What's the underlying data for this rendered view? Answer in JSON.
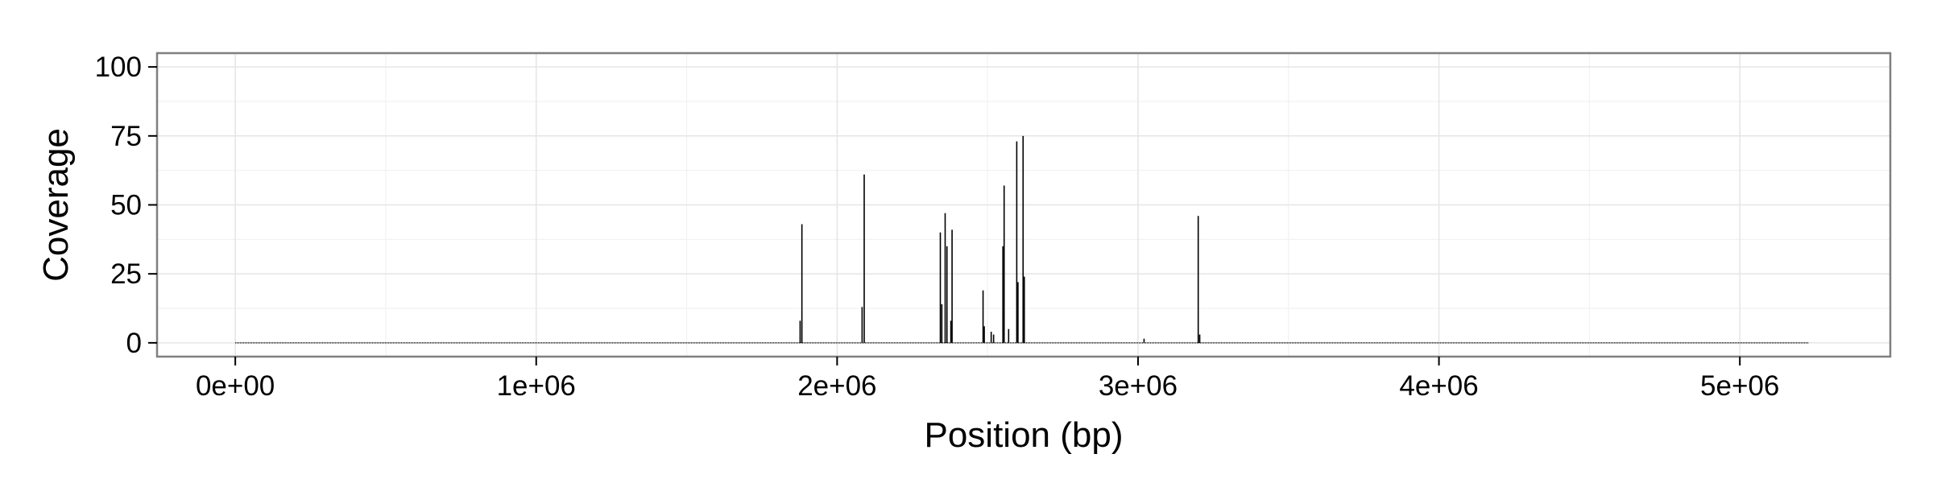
{
  "chart_data": {
    "type": "bar",
    "title": "",
    "xlabel": "Position (bp)",
    "ylabel": "Coverage",
    "xlim": [
      -260000,
      5500000
    ],
    "ylim": [
      -5,
      105
    ],
    "x_ticks": [
      0,
      1000000,
      2000000,
      3000000,
      4000000,
      5000000
    ],
    "x_tick_labels": [
      "0e+00",
      "1e+06",
      "2e+06",
      "3e+06",
      "4e+06",
      "5e+06"
    ],
    "y_ticks": [
      0,
      25,
      50,
      75,
      100
    ],
    "y_tick_labels": [
      "0",
      "25",
      "50",
      "75",
      "100"
    ],
    "grid": true,
    "legend": "none",
    "colors": {
      "bar": "#000000",
      "panel_background": "#ffffff",
      "grid_major": "#e6e6e6",
      "grid_minor": "#f2f2f2",
      "panel_border": "#7f7f7f",
      "axis_tick": "#000000"
    },
    "genome_extent": [
      0,
      5230000
    ],
    "baseline_coverage": 0.3,
    "peaks": [
      {
        "x": 1877000,
        "y": 8
      },
      {
        "x": 1883000,
        "y": 43
      },
      {
        "x": 2083000,
        "y": 13
      },
      {
        "x": 2090000,
        "y": 61
      },
      {
        "x": 2343000,
        "y": 40
      },
      {
        "x": 2348000,
        "y": 14
      },
      {
        "x": 2359000,
        "y": 47
      },
      {
        "x": 2365000,
        "y": 35
      },
      {
        "x": 2382000,
        "y": 41
      },
      {
        "x": 2378000,
        "y": 8
      },
      {
        "x": 2485000,
        "y": 19
      },
      {
        "x": 2489000,
        "y": 6
      },
      {
        "x": 2512000,
        "y": 4
      },
      {
        "x": 2520000,
        "y": 3
      },
      {
        "x": 2555000,
        "y": 57
      },
      {
        "x": 2551000,
        "y": 35
      },
      {
        "x": 2570000,
        "y": 5
      },
      {
        "x": 2597000,
        "y": 73
      },
      {
        "x": 2601000,
        "y": 22
      },
      {
        "x": 2618000,
        "y": 75
      },
      {
        "x": 2622000,
        "y": 24
      },
      {
        "x": 3020000,
        "y": 1.5
      },
      {
        "x": 3200000,
        "y": 46
      },
      {
        "x": 3205000,
        "y": 3
      }
    ]
  }
}
